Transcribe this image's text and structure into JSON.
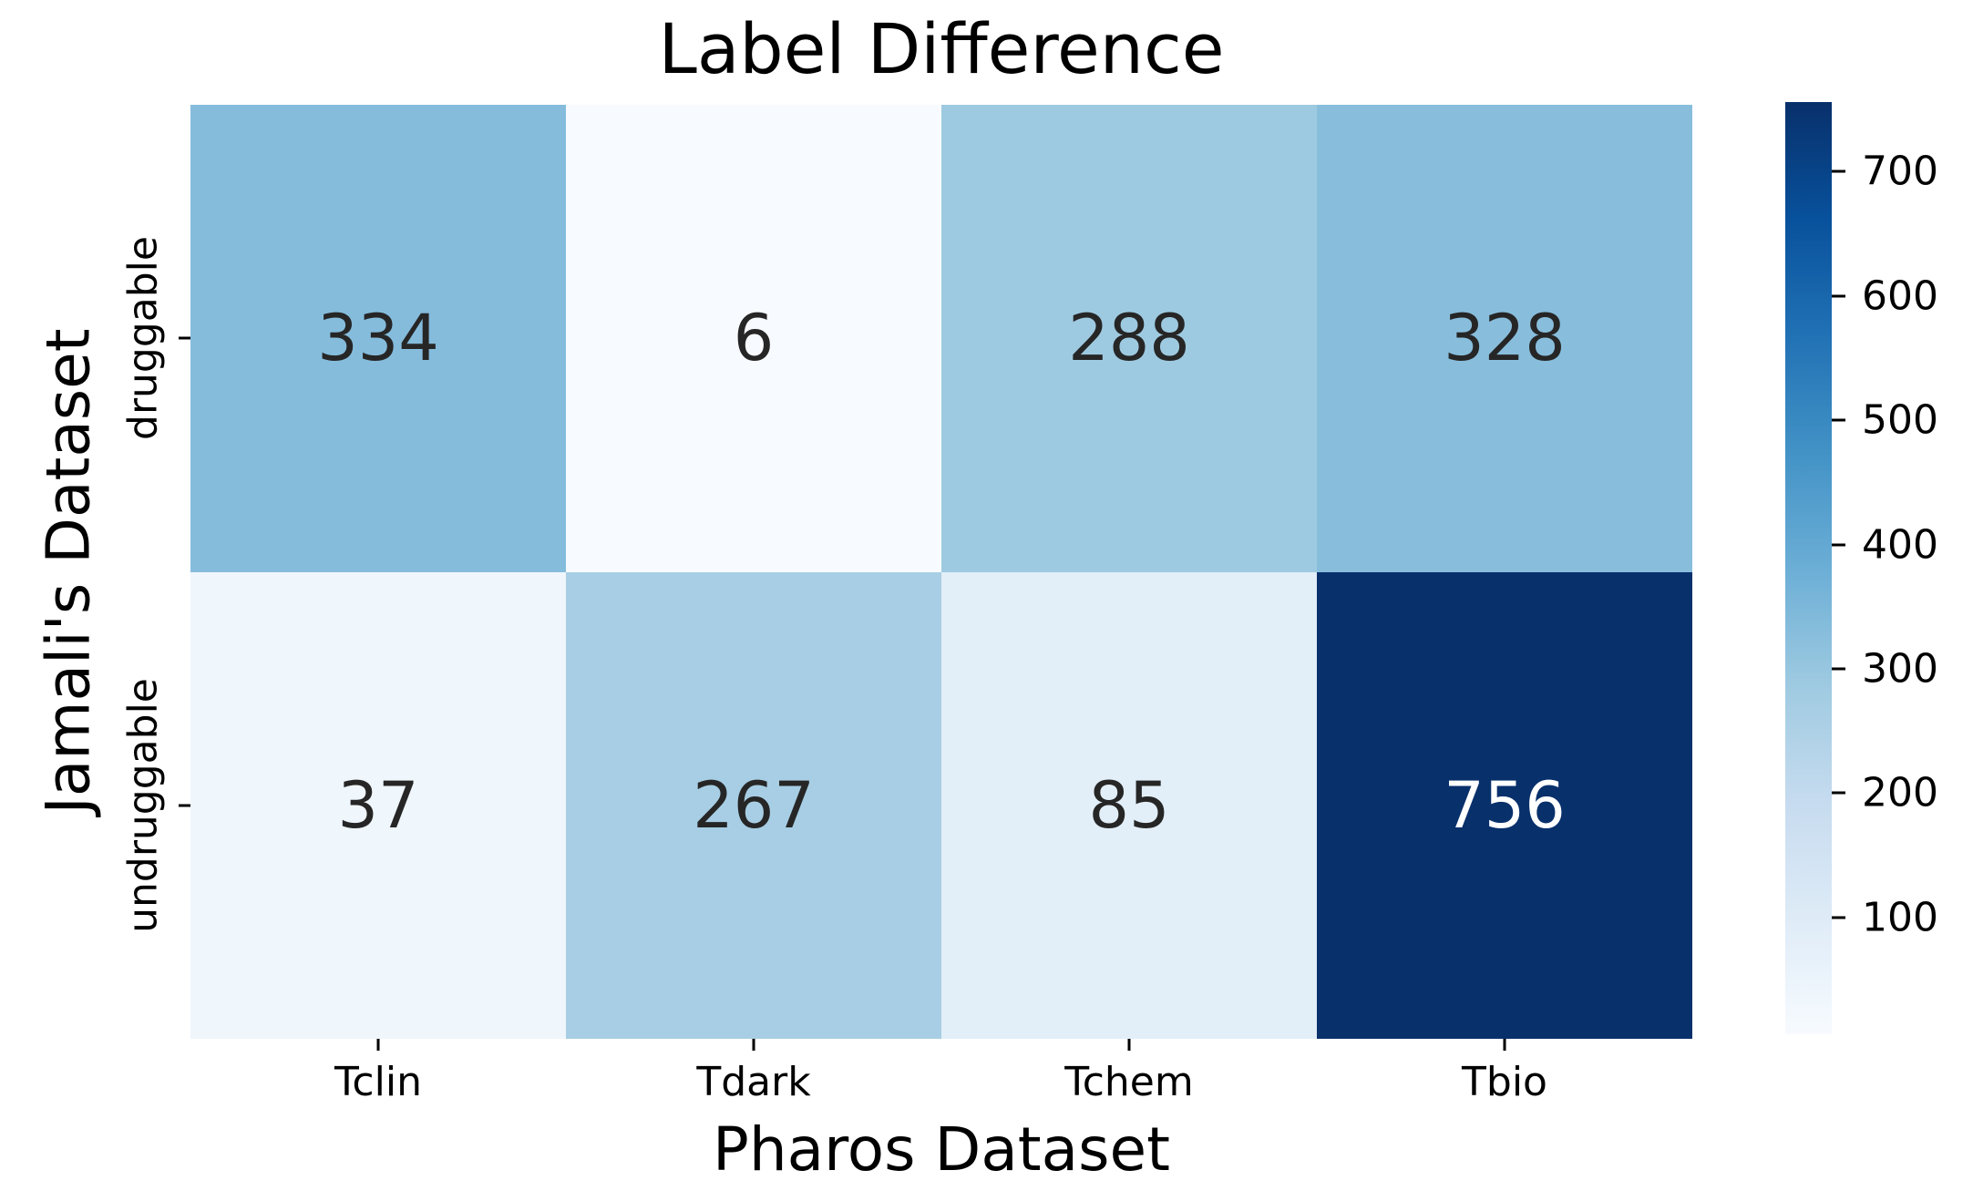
{
  "figure": {
    "background": "#ffffff"
  },
  "chart_data": {
    "type": "heatmap",
    "title": "Label Difference",
    "xlabel": "Pharos Dataset",
    "ylabel": "Jamali's Dataset",
    "x_categories": [
      "Tclin",
      "Tdark",
      "Tchem",
      "Tbio"
    ],
    "y_categories": [
      "druggable",
      "undruggable"
    ],
    "values": [
      [
        334,
        6,
        288,
        328
      ],
      [
        37,
        267,
        85,
        756
      ]
    ],
    "cell_colors": [
      [
        "#85bcdc",
        "#f7fbff",
        "#9ecae1",
        "#88bedc"
      ],
      [
        "#eff6fc",
        "#a7cee4",
        "#e2eef8",
        "#08306b"
      ]
    ],
    "cell_text_colors": [
      [
        "#262626",
        "#262626",
        "#262626",
        "#262626"
      ],
      [
        "#262626",
        "#262626",
        "#262626",
        "#ffffff"
      ]
    ],
    "colormap": "Blues",
    "grid": false,
    "legend_position": "right-colorbar",
    "colorbar": {
      "vmin": 6,
      "vmax": 756,
      "ticks": [
        700,
        600,
        500,
        400,
        300,
        200,
        100
      ],
      "gradient_stops": [
        {
          "color": "#08306b",
          "pos": 0
        },
        {
          "color": "#08519c",
          "pos": 12.5
        },
        {
          "color": "#2171b5",
          "pos": 25
        },
        {
          "color": "#4292c6",
          "pos": 37.5
        },
        {
          "color": "#6baed6",
          "pos": 50
        },
        {
          "color": "#9ecae1",
          "pos": 62.5
        },
        {
          "color": "#c6dbef",
          "pos": 75
        },
        {
          "color": "#deebf7",
          "pos": 87.5
        },
        {
          "color": "#f7fbff",
          "pos": 100
        }
      ]
    }
  }
}
